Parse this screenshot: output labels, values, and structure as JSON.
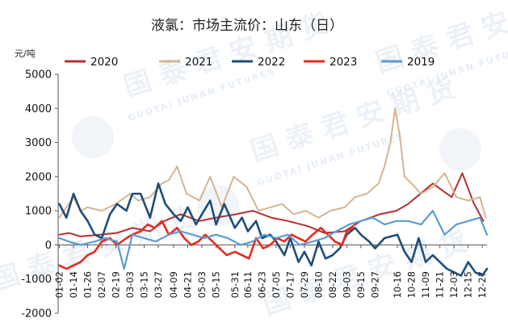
{
  "chart_data": {
    "type": "line",
    "title": "液氯：市场主流价：山东（日）",
    "ylabel": "元/吨",
    "xlabel": "",
    "ylim": [
      -2000,
      5000
    ],
    "yticks": [
      -2000,
      -1000,
      0,
      1000,
      2000,
      3000,
      4000,
      5000
    ],
    "x_range": [
      "01-01",
      "12-31"
    ],
    "xticks": [
      "01-02",
      "01-14",
      "01-26",
      "02-07",
      "02-19",
      "03-03",
      "03-15",
      "03-27",
      "04-09",
      "04-21",
      "05-03",
      "05-15",
      "05-31",
      "06-11",
      "06-23",
      "07-05",
      "07-17",
      "07-29",
      "08-10",
      "08-22",
      "09-03",
      "09-15",
      "09-27",
      "10-16",
      "10-28",
      "11-09",
      "11-21",
      "12-03",
      "12-15",
      "12-27"
    ],
    "grid": false,
    "legend_position": "top",
    "series": [
      {
        "name": "2020",
        "color": "#b5312f",
        "width": 2,
        "x": [
          "01-02",
          "01-10",
          "01-20",
          "02-05",
          "02-20",
          "03-05",
          "03-20",
          "04-01",
          "04-15",
          "05-01",
          "05-15",
          "06-01",
          "06-15",
          "07-01",
          "07-15",
          "08-01",
          "08-15",
          "09-01",
          "09-15",
          "10-01",
          "10-15",
          "10-25",
          "11-01",
          "11-15",
          "12-01",
          "12-10",
          "12-20",
          "12-28"
        ],
        "y": [
          300,
          350,
          250,
          300,
          350,
          500,
          400,
          700,
          900,
          700,
          800,
          900,
          1000,
          800,
          700,
          550,
          350,
          400,
          700,
          900,
          1000,
          1200,
          1400,
          1800,
          1400,
          2100,
          1200,
          700
        ]
      },
      {
        "name": "2021",
        "color": "#d5b592",
        "width": 2,
        "x": [
          "01-02",
          "01-08",
          "01-14",
          "01-20",
          "01-26",
          "02-07",
          "02-19",
          "03-03",
          "03-10",
          "03-20",
          "03-30",
          "04-05",
          "04-12",
          "04-20",
          "05-01",
          "05-10",
          "05-20",
          "05-30",
          "06-10",
          "06-20",
          "06-30",
          "07-10",
          "07-20",
          "07-30",
          "08-10",
          "08-20",
          "09-01",
          "09-10",
          "09-20",
          "09-30",
          "10-05",
          "10-10",
          "10-14",
          "10-18",
          "10-22",
          "10-28",
          "11-05",
          "11-15",
          "11-25",
          "12-05",
          "12-15",
          "12-25",
          "12-30"
        ],
        "y": [
          800,
          1100,
          1400,
          1000,
          1100,
          1000,
          1200,
          1500,
          1300,
          1400,
          1800,
          1900,
          2300,
          1500,
          1300,
          2000,
          1100,
          2000,
          1700,
          1000,
          1100,
          1200,
          900,
          1000,
          800,
          1000,
          1100,
          1400,
          1500,
          1800,
          2300,
          3000,
          4000,
          3200,
          2000,
          1800,
          1500,
          1700,
          2100,
          1400,
          1300,
          1400,
          800
        ]
      },
      {
        "name": "2022",
        "color": "#1f4e79",
        "width": 2.6,
        "x": [
          "01-02",
          "01-08",
          "01-14",
          "01-20",
          "01-26",
          "02-01",
          "02-07",
          "02-14",
          "02-20",
          "02-28",
          "03-05",
          "03-12",
          "03-20",
          "03-27",
          "04-02",
          "04-09",
          "04-15",
          "04-21",
          "04-28",
          "05-03",
          "05-10",
          "05-15",
          "05-22",
          "05-31",
          "06-06",
          "06-11",
          "06-18",
          "06-23",
          "06-30",
          "07-05",
          "07-12",
          "07-17",
          "07-24",
          "07-29",
          "08-04",
          "08-10",
          "08-16",
          "08-22",
          "08-28",
          "09-03",
          "09-10",
          "09-15",
          "09-22",
          "09-27",
          "10-05",
          "10-16",
          "10-22",
          "10-28",
          "11-03",
          "11-09",
          "11-15",
          "11-21",
          "11-27",
          "12-03",
          "12-09",
          "12-15",
          "12-21",
          "12-27",
          "12-31"
        ],
        "y": [
          1200,
          800,
          1500,
          1000,
          700,
          300,
          200,
          900,
          1200,
          1000,
          1500,
          1500,
          800,
          1800,
          1200,
          900,
          700,
          1100,
          600,
          900,
          1300,
          600,
          1200,
          500,
          800,
          400,
          700,
          200,
          300,
          100,
          -300,
          200,
          -500,
          -200,
          -600,
          100,
          -400,
          -300,
          -100,
          300,
          500,
          300,
          100,
          -100,
          200,
          300,
          -200,
          -500,
          200,
          -500,
          -300,
          -500,
          -700,
          -800,
          -900,
          -500,
          -800,
          -900,
          -700
        ]
      },
      {
        "name": "2023",
        "color": "#e52b21",
        "width": 2.6,
        "x": [
          "01-02",
          "01-08",
          "01-14",
          "01-20",
          "01-26",
          "02-01",
          "02-07",
          "02-14",
          "02-20",
          "02-28",
          "03-05",
          "03-12",
          "03-18",
          "03-24",
          "03-30",
          "04-05",
          "04-12",
          "04-18",
          "04-24",
          "04-30",
          "05-06",
          "05-12",
          "05-18",
          "05-24",
          "05-31",
          "06-06",
          "06-12",
          "06-18",
          "06-24",
          "06-30",
          "07-06",
          "07-12",
          "07-18",
          "07-24",
          "07-30",
          "08-05",
          "08-12",
          "08-18",
          "08-24",
          "08-30",
          "09-03",
          "09-08"
        ],
        "y": [
          -600,
          -700,
          -600,
          -500,
          -300,
          -200,
          100,
          200,
          0,
          200,
          300,
          400,
          600,
          500,
          700,
          300,
          500,
          200,
          0,
          100,
          300,
          100,
          -100,
          -300,
          -200,
          -300,
          -400,
          200,
          -100,
          0,
          200,
          100,
          300,
          200,
          100,
          300,
          500,
          300,
          100,
          0,
          400,
          500
        ]
      },
      {
        "name": "2019",
        "color": "#5b9bd5",
        "width": 2.2,
        "x": [
          "01-02",
          "01-10",
          "01-20",
          "02-01",
          "02-10",
          "02-20",
          "02-26",
          "03-05",
          "03-15",
          "03-25",
          "04-05",
          "04-15",
          "04-25",
          "05-05",
          "05-15",
          "05-25",
          "06-05",
          "06-15",
          "06-25",
          "07-05",
          "07-15",
          "07-25",
          "08-05",
          "08-15",
          "08-25",
          "09-05",
          "09-15",
          "09-25",
          "10-05",
          "10-15",
          "10-25",
          "11-05",
          "11-15",
          "11-25",
          "12-05",
          "12-15",
          "12-25",
          "12-31"
        ],
        "y": [
          200,
          100,
          0,
          100,
          200,
          100,
          -700,
          300,
          200,
          100,
          300,
          400,
          300,
          200,
          300,
          200,
          0,
          100,
          300,
          200,
          300,
          0,
          100,
          200,
          400,
          600,
          700,
          800,
          600,
          700,
          700,
          600,
          1000,
          300,
          600,
          700,
          800,
          300
        ]
      }
    ]
  }
}
